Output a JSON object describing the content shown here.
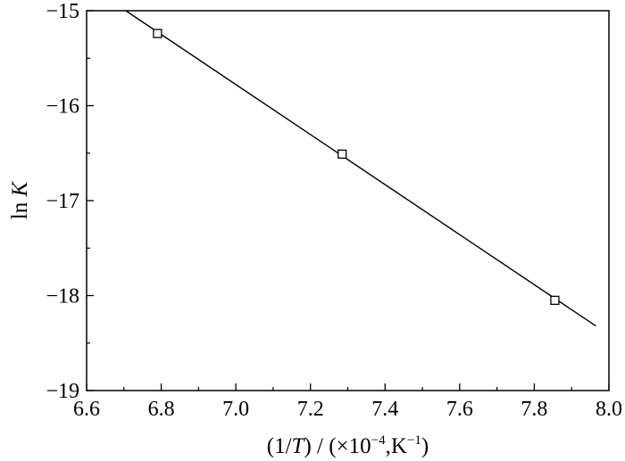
{
  "chart_data": {
    "type": "scatter",
    "title": "",
    "xlabel_parts": {
      "open": "(1/",
      "var": "T",
      "middle": ") / (×10",
      "exp1": "−4",
      "unit": ",K",
      "exp2": "−1",
      "close": ")"
    },
    "ylabel_parts": {
      "func": "ln ",
      "var": "K"
    },
    "xlim": [
      6.6,
      8.0
    ],
    "ylim": [
      -19,
      -15
    ],
    "xticks": [
      6.6,
      6.8,
      7.0,
      7.2,
      7.4,
      7.6,
      7.8,
      8.0
    ],
    "yticks": [
      -19,
      -18,
      -17,
      -16,
      -15
    ],
    "xtick_labels": [
      "6.6",
      "6.8",
      "7.0",
      "7.2",
      "7.4",
      "7.6",
      "7.8",
      "8.0"
    ],
    "ytick_labels": [
      "−19",
      "−18",
      "−17",
      "−16",
      "−15"
    ],
    "grid": false,
    "series": [
      {
        "marker": "square-open",
        "color": "#000000",
        "x": [
          6.79,
          7.285,
          7.855
        ],
        "y": [
          -15.24,
          -16.51,
          -18.05
        ]
      }
    ],
    "fit_line": {
      "color": "#000000",
      "x": [
        6.705,
        7.965
      ],
      "y": [
        -15.0,
        -18.32
      ]
    }
  }
}
